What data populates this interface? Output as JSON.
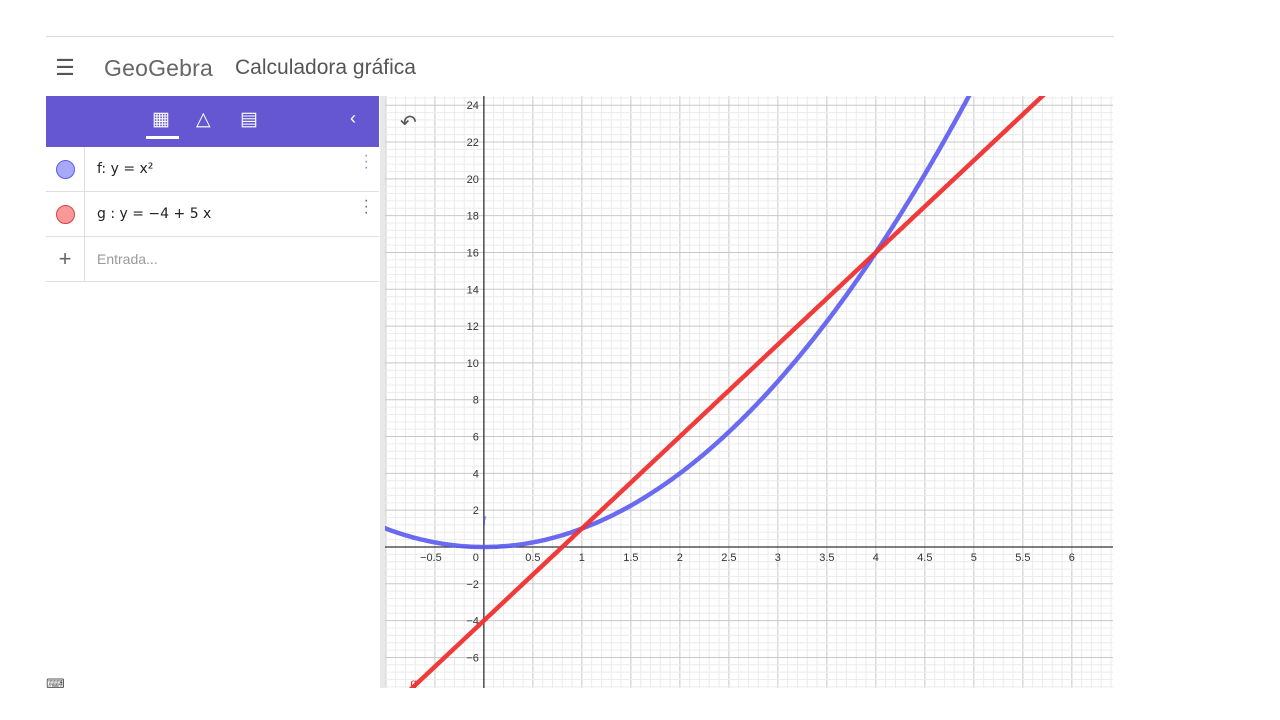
{
  "header": {
    "menu_icon": "hamburger-icon",
    "logo": "GeoGebra",
    "title": "Calculadora gráfica"
  },
  "toolbar": {
    "tabs": [
      {
        "icon": "calculator-icon"
      },
      {
        "icon": "geometry-icon"
      },
      {
        "icon": "table-icon"
      }
    ],
    "collapse_icon": "chevron-left-icon"
  },
  "algebra": {
    "items": [
      {
        "expr": "f: y = x²",
        "color": "#5b5bf0"
      },
      {
        "expr": "g : y = −4 + 5 x",
        "color": "#f03030"
      }
    ],
    "input_placeholder": "Entrada..."
  },
  "graph": {
    "undo_icon": "undo-icon",
    "labels": {
      "f": "f",
      "g": "g"
    },
    "chart_data": {
      "type": "line",
      "xlim": [
        -1.06,
        6.42
      ],
      "ylim": [
        -7.66,
        24.5
      ],
      "xticks": [
        "−0.5",
        "0",
        "0.5",
        "1",
        "1.5",
        "2",
        "2.5",
        "3",
        "3.5",
        "4",
        "4.5",
        "5",
        "5.5",
        "6"
      ],
      "xtick_values": [
        -0.5,
        0,
        0.5,
        1,
        1.5,
        2,
        2.5,
        3,
        3.5,
        4,
        4.5,
        5,
        5.5,
        6
      ],
      "yticks": [
        "24",
        "22",
        "20",
        "18",
        "16",
        "14",
        "12",
        "10",
        "8",
        "6",
        "4",
        "2",
        "−2",
        "−4",
        "−6"
      ],
      "ytick_values": [
        24,
        22,
        20,
        18,
        16,
        14,
        12,
        10,
        8,
        6,
        4,
        2,
        -2,
        -4,
        -6
      ],
      "grid": true,
      "series": [
        {
          "name": "f",
          "expression": "x^2",
          "color": "#5b5bf0"
        },
        {
          "name": "g",
          "expression": "-4+5x",
          "color": "#f03030"
        }
      ]
    }
  }
}
